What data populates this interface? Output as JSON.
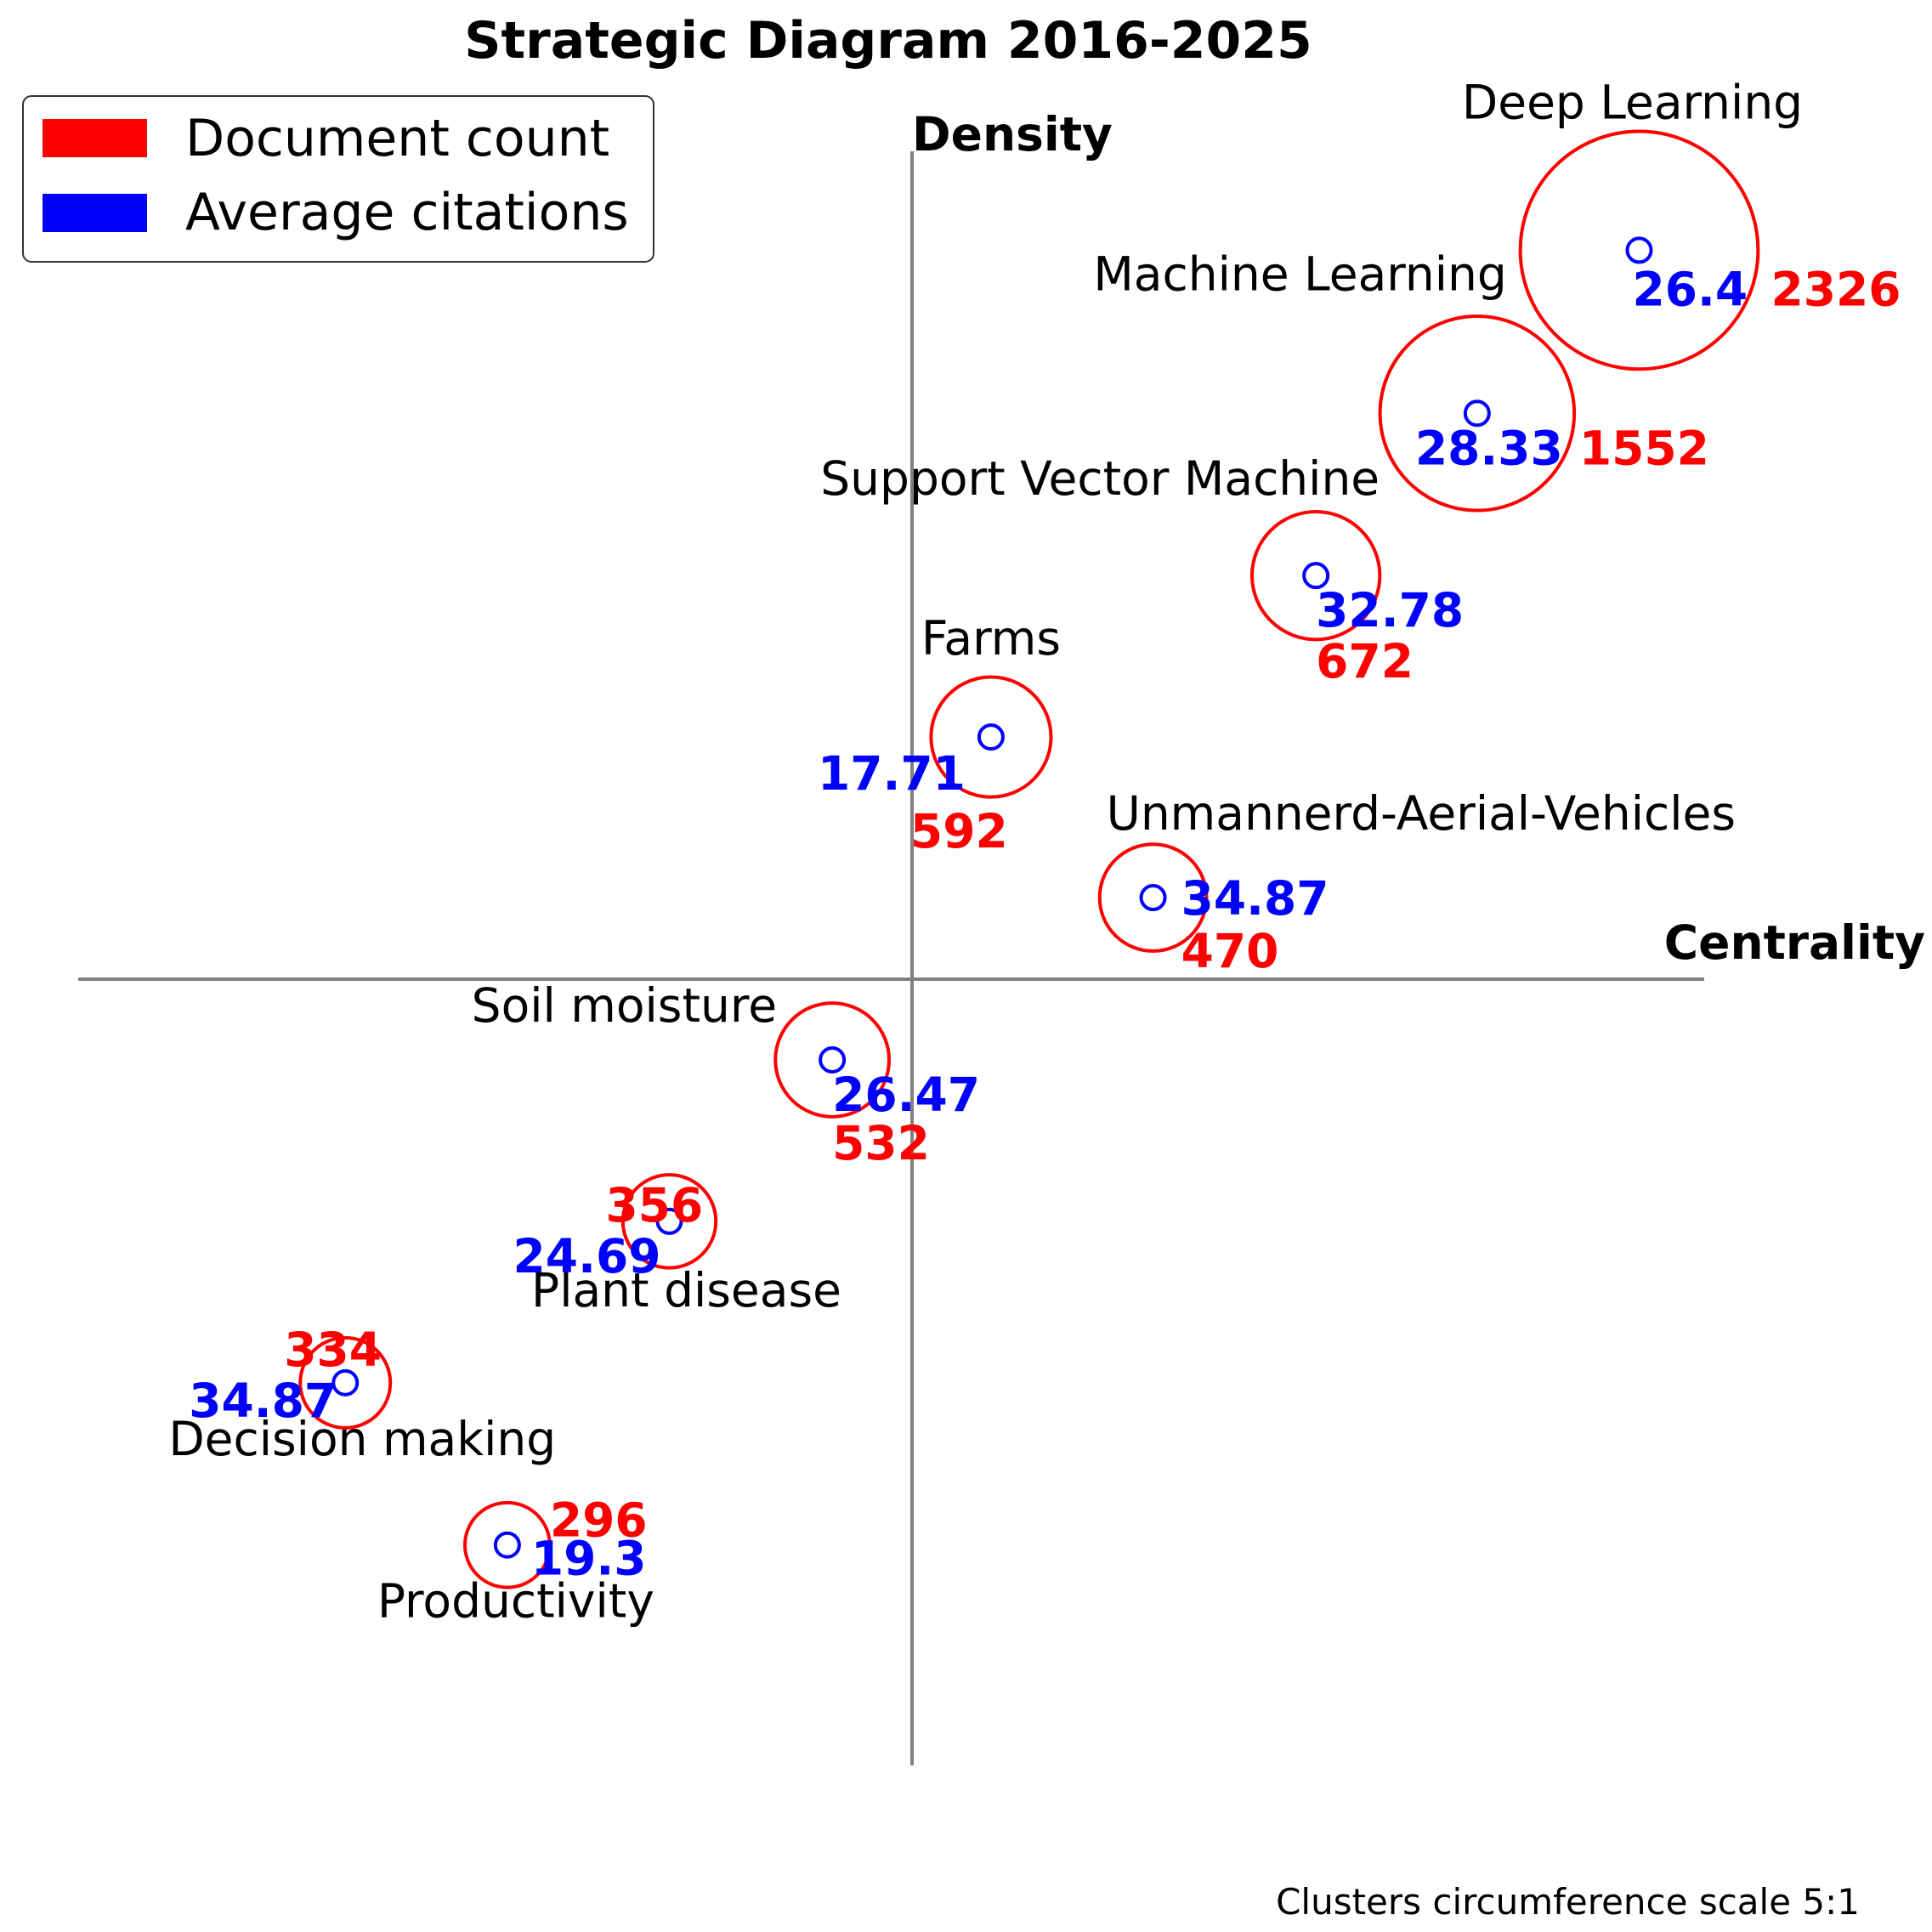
{
  "chart_data": {
    "type": "scatter",
    "title": "Strategic Diagram 2016-2025",
    "xlabel": "Centrality",
    "ylabel": "Density",
    "legend": {
      "placement": "top-left",
      "entries": [
        {
          "label": "Document count",
          "color": "#ff0000"
        },
        {
          "label": "Average citations",
          "color": "#0000ff"
        }
      ]
    },
    "colors": {
      "documents": "#ff0000",
      "citations": "#0000ff",
      "axis": "#808080"
    },
    "note": "Clusters circumference scale 5:1",
    "clusters": [
      {
        "name": "Deep Learning",
        "centrality": 0.893,
        "density": 0.876,
        "documents": 2326,
        "citations": "26.4"
      },
      {
        "name": "Machine Learning",
        "centrality": 0.694,
        "density": 0.68,
        "documents": 1552,
        "citations": "28.33"
      },
      {
        "name": "Support Vector Machine",
        "centrality": 0.496,
        "density": 0.485,
        "documents": 672,
        "citations": "32.78"
      },
      {
        "name": "Farms",
        "centrality": 0.097,
        "density": 0.291,
        "documents": 592,
        "citations": "17.71"
      },
      {
        "name": "Unmannerd-Aerial-Vehicles",
        "centrality": 0.296,
        "density": 0.098,
        "documents": 470,
        "citations": "34.87"
      },
      {
        "name": "Soil moisture",
        "centrality": -0.098,
        "density": -0.097,
        "documents": 532,
        "citations": "26.47"
      },
      {
        "name": "Plant disease",
        "centrality": -0.298,
        "density": -0.291,
        "documents": 356,
        "citations": "24.69"
      },
      {
        "name": "Decision making",
        "centrality": -0.696,
        "density": -0.485,
        "documents": 334,
        "citations": "34.87"
      },
      {
        "name": "Productivity",
        "centrality": -0.497,
        "density": -0.68,
        "documents": 296,
        "citations": "19.3"
      }
    ]
  }
}
